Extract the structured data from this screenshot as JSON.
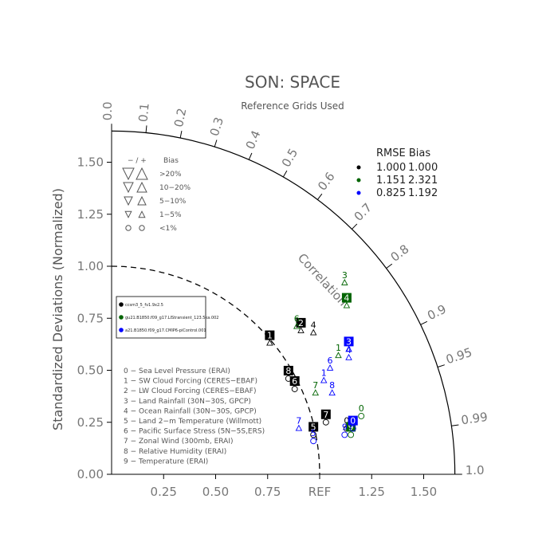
{
  "chart_data": {
    "type": "scatter",
    "title": "SON: SPACE",
    "subtitle": "Reference Grids Used",
    "ylabel": "Standardized Deviations (Normalized)",
    "correlation_label": "Correlation",
    "ref_label": "REF",
    "std_ticks": [
      "0.00",
      "0.25",
      "0.50",
      "0.75",
      "1.00",
      "1.25",
      "1.50"
    ],
    "x_ticks": [
      "0.25",
      "0.50",
      "0.75",
      "1.25",
      "1.50"
    ],
    "corr_ticks": [
      "0.0",
      "0.1",
      "0.2",
      "0.3",
      "0.4",
      "0.5",
      "0.6",
      "0.7",
      "0.8",
      "0.9",
      "0.95",
      "0.99",
      "1.0"
    ],
    "corr_values": [
      0.0,
      0.1,
      0.2,
      0.3,
      0.4,
      0.5,
      0.6,
      0.7,
      0.8,
      0.9,
      0.95,
      0.99,
      1.0
    ],
    "xlim": [
      0,
      1.65
    ],
    "ylim": [
      0,
      1.65
    ],
    "bias_legend": {
      "header": [
        "− / +",
        "Bias"
      ],
      "rows": [
        {
          "minus": "▽",
          "plus": "△",
          "label": ">20%"
        },
        {
          "minus": "▽",
          "plus": "△",
          "label": "10−20%"
        },
        {
          "minus": "▽",
          "plus": "△",
          "label": "5−10%"
        },
        {
          "minus": "▽",
          "plus": "△",
          "label": "1−5%"
        },
        {
          "minus": "o",
          "plus": "o",
          "label": "<1%"
        }
      ]
    },
    "rmse_table": {
      "header": "RMSE  Bias",
      "rows": [
        {
          "color": "#000000",
          "rmse": "1.000",
          "bias": "1.000"
        },
        {
          "color": "#006400",
          "rmse": "1.151",
          "bias": "2.321"
        },
        {
          "color": "#0000ff",
          "rmse": "0.825",
          "bias": "1.192"
        }
      ]
    },
    "case_legend": [
      {
        "color": "#000000",
        "label": "ccsm3_5_fv1.9x2.5"
      },
      {
        "color": "#006400",
        "label": "gu21.B1850.f09_g17.LIStransient_123.5ka.002"
      },
      {
        "color": "#0000ff",
        "label": "a21.B1850.f09_g17.CMIP6-piControl.001"
      }
    ],
    "variables": [
      "0 − Sea Level Pressure (ERAI)",
      "1 − SW Cloud Forcing (CERES−EBAF)",
      "2 − LW Cloud Forcing (CERES−EBAF)",
      "3 − Land Rainfall (30N−30S, GPCP)",
      "4 − Ocean Rainfall (30N−30S, GPCP)",
      "5 − Land 2−m Temperature (Willmott)",
      "6 − Pacific Surface Stress (5N−5S,ERS)",
      "7 − Zonal Wind (300mb, ERAI)",
      "8 − Relative Humidity (ERAI)",
      "9 − Temperature (ERAI)"
    ],
    "series": [
      {
        "color": "#000000",
        "points": [
          {
            "id": "0",
            "x": 1.13,
            "y": 0.22,
            "marker": "circle",
            "boxed": false
          },
          {
            "id": "1",
            "x": 0.76,
            "y": 0.63,
            "marker": "tri_up",
            "boxed": true
          },
          {
            "id": "2",
            "x": 0.91,
            "y": 0.69,
            "marker": "tri_up",
            "boxed": true
          },
          {
            "id": "4",
            "x": 0.97,
            "y": 0.68,
            "marker": "tri_up",
            "boxed": false
          },
          {
            "id": "5",
            "x": 0.97,
            "y": 0.19,
            "marker": "circle",
            "boxed": true
          },
          {
            "id": "6",
            "x": 0.88,
            "y": 0.41,
            "marker": "circle",
            "boxed": true
          },
          {
            "id": "7",
            "x": 1.03,
            "y": 0.25,
            "marker": "circle",
            "boxed": true
          },
          {
            "id": "8",
            "x": 0.85,
            "y": 0.46,
            "marker": "circle",
            "boxed": true
          }
        ]
      },
      {
        "color": "#006400",
        "points": [
          {
            "id": "0",
            "x": 1.2,
            "y": 0.28,
            "marker": "circle",
            "boxed": false
          },
          {
            "id": "1",
            "x": 1.09,
            "y": 0.57,
            "marker": "tri_up",
            "boxed": false
          },
          {
            "id": "3",
            "x": 1.12,
            "y": 0.92,
            "marker": "tri_up",
            "boxed": false
          },
          {
            "id": "4",
            "x": 1.13,
            "y": 0.81,
            "marker": "tri_up",
            "boxed": true
          },
          {
            "id": "6",
            "x": 0.89,
            "y": 0.71,
            "marker": "tri_up",
            "boxed": false
          },
          {
            "id": "7",
            "x": 0.98,
            "y": 0.39,
            "marker": "tri_up",
            "boxed": false
          },
          {
            "id": "9",
            "x": 1.15,
            "y": 0.19,
            "marker": "circle",
            "boxed": true
          }
        ]
      },
      {
        "color": "#0000ff",
        "points": [
          {
            "id": "0",
            "x": 1.16,
            "y": 0.22,
            "marker": "circle",
            "boxed": true
          },
          {
            "id": "1",
            "x": 1.02,
            "y": 0.45,
            "marker": "tri_up",
            "boxed": false
          },
          {
            "id": "3",
            "x": 1.14,
            "y": 0.6,
            "marker": "tri_up",
            "boxed": true
          },
          {
            "id": "4",
            "x": 1.14,
            "y": 0.56,
            "marker": "tri_up",
            "boxed": false
          },
          {
            "id": "5",
            "x": 0.97,
            "y": 0.16,
            "marker": "circle",
            "boxed": false
          },
          {
            "id": "6",
            "x": 1.05,
            "y": 0.51,
            "marker": "tri_up",
            "boxed": false
          },
          {
            "id": "7",
            "x": 0.9,
            "y": 0.22,
            "marker": "tri_up",
            "boxed": false
          },
          {
            "id": "8",
            "x": 1.06,
            "y": 0.39,
            "marker": "tri_up",
            "boxed": false
          },
          {
            "id": "9",
            "x": 1.12,
            "y": 0.19,
            "marker": "circle",
            "boxed": false
          }
        ]
      }
    ]
  }
}
